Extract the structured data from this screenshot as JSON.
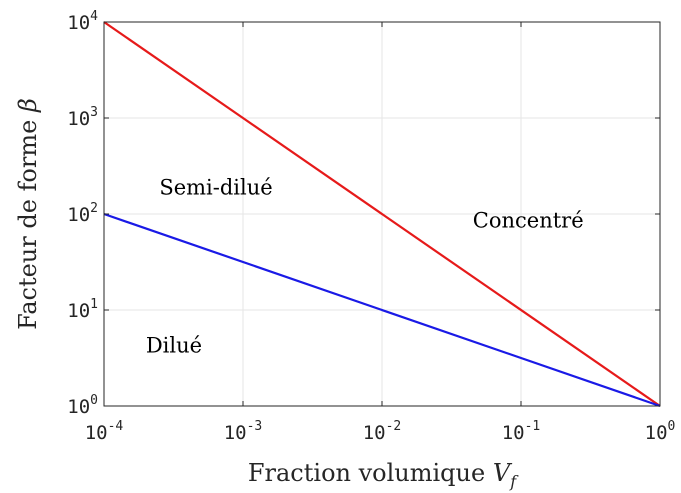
{
  "chart_data": {
    "type": "line",
    "xscale": "log",
    "yscale": "log",
    "xlabel": "Fraction volumique",
    "xlabel_symbol": "V",
    "xlabel_subscript": "f",
    "ylabel": "Facteur de forme",
    "ylabel_symbol": "β",
    "xlim": [
      0.0001,
      1
    ],
    "ylim": [
      1,
      10000
    ],
    "grid": true,
    "x_ticks": [
      {
        "value": 0.0001,
        "base": "10",
        "exp": "-4"
      },
      {
        "value": 0.001,
        "base": "10",
        "exp": "-3"
      },
      {
        "value": 0.01,
        "base": "10",
        "exp": "-2"
      },
      {
        "value": 0.1,
        "base": "10",
        "exp": "-1"
      },
      {
        "value": 1,
        "base": "10",
        "exp": "0"
      }
    ],
    "y_ticks": [
      {
        "value": 1,
        "base": "10",
        "exp": "0"
      },
      {
        "value": 10,
        "base": "10",
        "exp": "1"
      },
      {
        "value": 100,
        "base": "10",
        "exp": "2"
      },
      {
        "value": 1000,
        "base": "10",
        "exp": "3"
      },
      {
        "value": 10000,
        "base": "10",
        "exp": "4"
      }
    ],
    "series": [
      {
        "color": "#e61a1a",
        "x": [
          0.0001,
          1
        ],
        "y": [
          10000,
          1
        ]
      },
      {
        "color": "#1a1ae6",
        "x": [
          0.0001,
          1
        ],
        "y": [
          100,
          1
        ]
      }
    ],
    "annotations": [
      {
        "text": "Semi-dilué",
        "x": 0.00025,
        "y": 160
      },
      {
        "text": "Concentré",
        "x": 0.045,
        "y": 72
      },
      {
        "text": "Dilué",
        "x": 0.0002,
        "y": 3.6
      }
    ]
  }
}
